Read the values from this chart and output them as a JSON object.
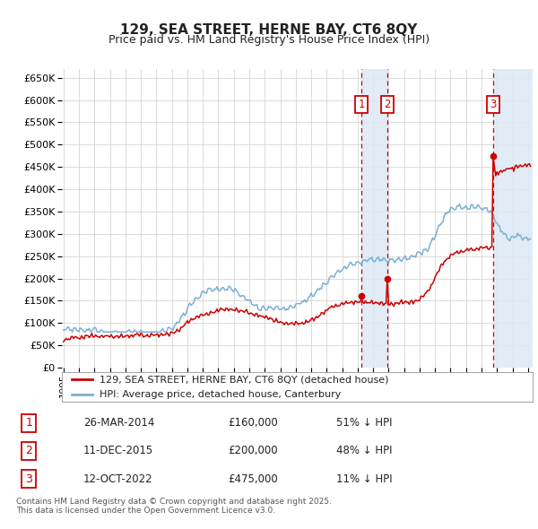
{
  "title": "129, SEA STREET, HERNE BAY, CT6 8QY",
  "subtitle": "Price paid vs. HM Land Registry's House Price Index (HPI)",
  "background_color": "#ffffff",
  "plot_bg_color": "#ffffff",
  "grid_color": "#cccccc",
  "hpi_color": "#7ab0d4",
  "price_color": "#cc0000",
  "span_color": "#dce9f5",
  "transactions": [
    {
      "date": 2014.23,
      "price": 160000,
      "label": "1"
    },
    {
      "date": 2015.95,
      "price": 200000,
      "label": "2"
    },
    {
      "date": 2022.79,
      "price": 475000,
      "label": "3"
    }
  ],
  "transaction_dates_str": [
    "26-MAR-2014",
    "11-DEC-2015",
    "12-OCT-2022"
  ],
  "transaction_prices_str": [
    "£160,000",
    "£200,000",
    "£475,000"
  ],
  "transaction_hpi_str": [
    "51% ↓ HPI",
    "48% ↓ HPI",
    "11% ↓ HPI"
  ],
  "legend_label_price": "129, SEA STREET, HERNE BAY, CT6 8QY (detached house)",
  "legend_label_hpi": "HPI: Average price, detached house, Canterbury",
  "footnote": "Contains HM Land Registry data © Crown copyright and database right 2025.\nThis data is licensed under the Open Government Licence v3.0.",
  "ylim": [
    0,
    670000
  ],
  "yticks": [
    0,
    50000,
    100000,
    150000,
    200000,
    250000,
    300000,
    350000,
    400000,
    450000,
    500000,
    550000,
    600000,
    650000
  ],
  "xstart": 1995,
  "xend": 2025
}
